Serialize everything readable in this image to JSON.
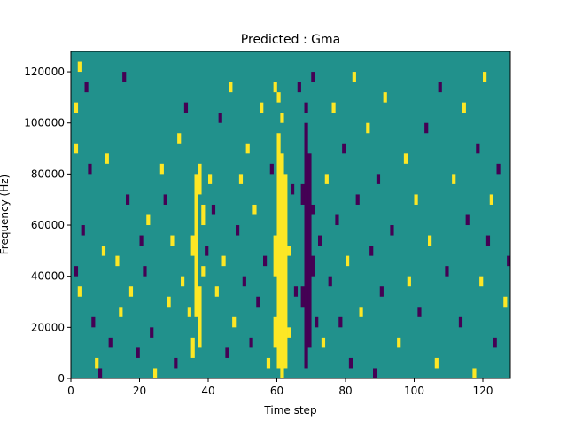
{
  "chart_data": {
    "type": "heatmap",
    "title": "Predicted : Gma",
    "xlabel": "Time step",
    "ylabel": "Frequency (Hz)",
    "xlim": [
      0,
      128
    ],
    "ylim": [
      0,
      128000
    ],
    "freq_bin_hz": 4000,
    "xticks": [
      0,
      20,
      40,
      60,
      80,
      100,
      120
    ],
    "yticks": [
      0,
      20000,
      40000,
      60000,
      80000,
      100000,
      120000
    ],
    "colors": {
      "-1": "#440154",
      "0": "#21918c",
      "1": "#fde725"
    },
    "background_value": 0,
    "cells_format": "[time_step, freq_bin_start, freq_bin_end, value]",
    "cells": [
      [
        60,
        1,
        24,
        1
      ],
      [
        61,
        0,
        22,
        1
      ],
      [
        62,
        1,
        20,
        1
      ],
      [
        59,
        3,
        6,
        1
      ],
      [
        59,
        10,
        14,
        1
      ],
      [
        60,
        27,
        28,
        1
      ],
      [
        61,
        25,
        26,
        1
      ],
      [
        59,
        28,
        29,
        1
      ],
      [
        63,
        12,
        13,
        1
      ],
      [
        63,
        4,
        5,
        1
      ],
      [
        68,
        1,
        25,
        -1
      ],
      [
        69,
        3,
        22,
        -1
      ],
      [
        67,
        7,
        9,
        -1
      ],
      [
        70,
        10,
        12,
        -1
      ],
      [
        70,
        16,
        17,
        -1
      ],
      [
        67,
        17,
        19,
        -1
      ],
      [
        71,
        5,
        6,
        -1
      ],
      [
        68,
        26,
        27,
        -1
      ],
      [
        70,
        29,
        30,
        -1
      ],
      [
        36,
        6,
        20,
        1
      ],
      [
        37,
        3,
        9,
        1
      ],
      [
        35,
        2,
        4,
        1
      ],
      [
        38,
        15,
        17,
        1
      ],
      [
        35,
        12,
        14,
        1
      ],
      [
        37,
        18,
        21,
        1
      ],
      [
        38,
        10,
        11,
        1
      ],
      [
        34,
        6,
        7,
        1
      ],
      [
        1,
        26,
        27,
        1
      ],
      [
        1,
        22,
        23,
        1
      ],
      [
        2,
        8,
        9,
        1
      ],
      [
        1,
        10,
        11,
        -1
      ],
      [
        2,
        30,
        31,
        1
      ],
      [
        3,
        14,
        15,
        -1
      ],
      [
        4,
        28,
        29,
        -1
      ],
      [
        5,
        20,
        21,
        -1
      ],
      [
        6,
        5,
        6,
        -1
      ],
      [
        7,
        1,
        2,
        1
      ],
      [
        8,
        0,
        1,
        -1
      ],
      [
        9,
        12,
        13,
        1
      ],
      [
        10,
        21,
        22,
        1
      ],
      [
        11,
        3,
        4,
        -1
      ],
      [
        13,
        11,
        12,
        1
      ],
      [
        14,
        6,
        7,
        1
      ],
      [
        15,
        29,
        30,
        -1
      ],
      [
        16,
        17,
        18,
        -1
      ],
      [
        17,
        8,
        9,
        1
      ],
      [
        19,
        2,
        3,
        -1
      ],
      [
        20,
        13,
        14,
        -1
      ],
      [
        21,
        10,
        11,
        -1
      ],
      [
        22,
        15,
        16,
        1
      ],
      [
        23,
        4,
        5,
        -1
      ],
      [
        24,
        0,
        1,
        1
      ],
      [
        26,
        20,
        21,
        1
      ],
      [
        27,
        17,
        18,
        -1
      ],
      [
        28,
        7,
        8,
        1
      ],
      [
        29,
        13,
        14,
        1
      ],
      [
        30,
        1,
        2,
        -1
      ],
      [
        31,
        23,
        24,
        1
      ],
      [
        32,
        9,
        10,
        1
      ],
      [
        33,
        26,
        27,
        -1
      ],
      [
        39,
        12,
        13,
        -1
      ],
      [
        40,
        19,
        20,
        1
      ],
      [
        41,
        16,
        17,
        -1
      ],
      [
        42,
        8,
        9,
        1
      ],
      [
        43,
        25,
        26,
        -1
      ],
      [
        44,
        11,
        12,
        1
      ],
      [
        45,
        2,
        3,
        -1
      ],
      [
        46,
        28,
        29,
        1
      ],
      [
        47,
        5,
        6,
        1
      ],
      [
        48,
        14,
        15,
        -1
      ],
      [
        49,
        19,
        20,
        1
      ],
      [
        50,
        9,
        10,
        -1
      ],
      [
        51,
        22,
        23,
        1
      ],
      [
        52,
        3,
        4,
        -1
      ],
      [
        53,
        16,
        17,
        1
      ],
      [
        54,
        7,
        8,
        -1
      ],
      [
        55,
        26,
        27,
        1
      ],
      [
        56,
        11,
        12,
        -1
      ],
      [
        57,
        1,
        2,
        1
      ],
      [
        58,
        20,
        21,
        -1
      ],
      [
        64,
        18,
        19,
        -1
      ],
      [
        65,
        8,
        9,
        -1
      ],
      [
        66,
        28,
        29,
        -1
      ],
      [
        72,
        13,
        14,
        -1
      ],
      [
        73,
        3,
        4,
        1
      ],
      [
        74,
        19,
        20,
        1
      ],
      [
        75,
        9,
        10,
        -1
      ],
      [
        76,
        26,
        27,
        1
      ],
      [
        77,
        15,
        16,
        -1
      ],
      [
        78,
        5,
        6,
        -1
      ],
      [
        79,
        22,
        23,
        -1
      ],
      [
        80,
        11,
        12,
        1
      ],
      [
        81,
        1,
        2,
        -1
      ],
      [
        82,
        29,
        30,
        1
      ],
      [
        83,
        17,
        18,
        -1
      ],
      [
        84,
        6,
        7,
        1
      ],
      [
        86,
        24,
        25,
        1
      ],
      [
        87,
        12,
        13,
        -1
      ],
      [
        88,
        0,
        1,
        -1
      ],
      [
        89,
        19,
        20,
        -1
      ],
      [
        90,
        8,
        9,
        -1
      ],
      [
        91,
        27,
        28,
        1
      ],
      [
        93,
        14,
        15,
        -1
      ],
      [
        95,
        3,
        4,
        1
      ],
      [
        97,
        21,
        22,
        1
      ],
      [
        98,
        9,
        10,
        1
      ],
      [
        100,
        17,
        18,
        1
      ],
      [
        101,
        6,
        7,
        -1
      ],
      [
        103,
        24,
        25,
        -1
      ],
      [
        104,
        13,
        14,
        1
      ],
      [
        106,
        1,
        2,
        1
      ],
      [
        107,
        28,
        29,
        -1
      ],
      [
        109,
        10,
        11,
        -1
      ],
      [
        111,
        19,
        20,
        1
      ],
      [
        113,
        5,
        6,
        -1
      ],
      [
        114,
        26,
        27,
        1
      ],
      [
        115,
        15,
        16,
        -1
      ],
      [
        117,
        0,
        1,
        1
      ],
      [
        118,
        22,
        23,
        -1
      ],
      [
        119,
        9,
        10,
        1
      ],
      [
        120,
        29,
        30,
        1
      ],
      [
        121,
        13,
        14,
        -1
      ],
      [
        122,
        17,
        18,
        1
      ],
      [
        123,
        3,
        4,
        -1
      ],
      [
        124,
        20,
        21,
        -1
      ],
      [
        126,
        7,
        8,
        1
      ],
      [
        127,
        11,
        12,
        -1
      ]
    ]
  }
}
